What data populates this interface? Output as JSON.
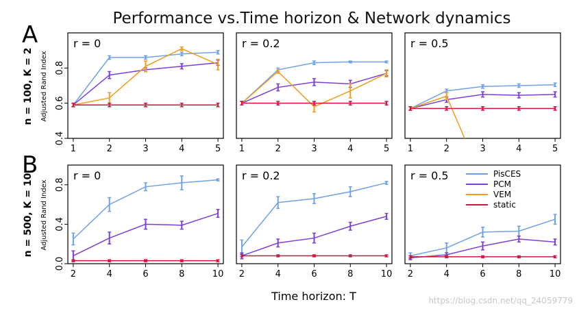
{
  "title": "Performance vs.Time horizon & Network dynamics",
  "x_title": "Time horizon: T",
  "watermark": "https://blog.csdn.net/qq_24059779",
  "rows": [
    {
      "letter": "A",
      "label": "n = 100, K = 2",
      "ylabel": "Adjusted Rand Index"
    },
    {
      "letter": "B",
      "label": "n = 500, K = 10",
      "ylabel": "Adjusted Rand Index"
    }
  ],
  "legend": [
    {
      "name": "PisCES",
      "color": "#6fa0e8"
    },
    {
      "name": "PCM",
      "color": "#7b3fdc"
    },
    {
      "name": "VEM",
      "color": "#f29b1d"
    },
    {
      "name": "static",
      "color": "#d0143c"
    }
  ],
  "chart_data": [
    {
      "type": "line",
      "row": 0,
      "col": 0,
      "panel_label": "r = 0",
      "x": [
        1,
        2,
        3,
        4,
        5
      ],
      "xlim": [
        0.85,
        5.15
      ],
      "ylim": [
        0.4,
        1.0
      ],
      "yticks": [
        0.4,
        0.6,
        0.8
      ],
      "series": [
        {
          "name": "PisCES",
          "values": [
            0.59,
            0.86,
            0.86,
            0.88,
            0.89
          ],
          "err": [
            0.01,
            0.01,
            0.01,
            0.01,
            0.01
          ]
        },
        {
          "name": "PCM",
          "values": [
            0.59,
            0.76,
            0.79,
            0.81,
            0.83
          ],
          "err": [
            0.01,
            0.02,
            0.01,
            0.015,
            0.015
          ]
        },
        {
          "name": "VEM",
          "values": [
            0.59,
            0.63,
            0.81,
            0.91,
            0.82
          ],
          "err": [
            0.01,
            0.03,
            0.03,
            0.01,
            0.03
          ]
        },
        {
          "name": "static",
          "values": [
            0.59,
            0.59,
            0.59,
            0.59,
            0.59
          ],
          "err": [
            0.01,
            0.01,
            0.01,
            0.01,
            0.01
          ]
        }
      ]
    },
    {
      "type": "line",
      "row": 0,
      "col": 1,
      "panel_label": "r = 0.2",
      "x": [
        1,
        2,
        3,
        4,
        5
      ],
      "xlim": [
        0.85,
        5.15
      ],
      "ylim": [
        0.4,
        1.0
      ],
      "yticks": [
        0.4,
        0.6,
        0.8
      ],
      "series": [
        {
          "name": "PisCES",
          "values": [
            0.6,
            0.79,
            0.83,
            0.835,
            0.835
          ],
          "err": [
            0.01,
            0.01,
            0.01,
            0.005,
            0.005
          ]
        },
        {
          "name": "PCM",
          "values": [
            0.6,
            0.69,
            0.72,
            0.71,
            0.77
          ],
          "err": [
            0.01,
            0.02,
            0.02,
            0.02,
            0.015
          ]
        },
        {
          "name": "VEM",
          "values": [
            0.6,
            0.78,
            0.58,
            0.67,
            0.77
          ],
          "err": [
            0.01,
            0.01,
            0.03,
            0.04,
            0.02
          ]
        },
        {
          "name": "static",
          "values": [
            0.6,
            0.6,
            0.6,
            0.6,
            0.6
          ],
          "err": [
            0.01,
            0.01,
            0.01,
            0.01,
            0.01
          ]
        }
      ]
    },
    {
      "type": "line",
      "row": 0,
      "col": 2,
      "panel_label": "r = 0.5",
      "x": [
        1,
        2,
        3,
        4,
        5
      ],
      "xlim": [
        0.85,
        5.15
      ],
      "ylim": [
        0.4,
        1.0
      ],
      "yticks": [
        0.4,
        0.6,
        0.8
      ],
      "series": [
        {
          "name": "PisCES",
          "values": [
            0.57,
            0.67,
            0.695,
            0.7,
            0.705
          ],
          "err": [
            0.01,
            0.01,
            0.01,
            0.01,
            0.01
          ]
        },
        {
          "name": "PCM",
          "values": [
            0.57,
            0.62,
            0.65,
            0.645,
            0.65
          ],
          "err": [
            0.01,
            0.015,
            0.015,
            0.015,
            0.015
          ]
        },
        {
          "name": "VEM",
          "x": [
            1,
            2,
            2.5
          ],
          "values": [
            0.57,
            0.64,
            0.4
          ],
          "err": [
            0.01,
            0.02,
            0
          ]
        },
        {
          "name": "static",
          "values": [
            0.57,
            0.57,
            0.57,
            0.57,
            0.57
          ],
          "err": [
            0.01,
            0.01,
            0.01,
            0.01,
            0.01
          ]
        }
      ]
    },
    {
      "type": "line",
      "row": 1,
      "col": 0,
      "panel_label": "r = 0",
      "x": [
        2,
        4,
        6,
        8,
        10
      ],
      "xlim": [
        1.7,
        10.3
      ],
      "ylim": [
        0,
        1.0
      ],
      "yticks": [
        0.0,
        0.4,
        0.8
      ],
      "series": [
        {
          "name": "PisCES",
          "values": [
            0.25,
            0.6,
            0.78,
            0.82,
            0.85
          ],
          "err": [
            0.06,
            0.07,
            0.04,
            0.07,
            0.01
          ]
        },
        {
          "name": "PCM",
          "values": [
            0.08,
            0.26,
            0.4,
            0.39,
            0.51
          ],
          "err": [
            0.05,
            0.06,
            0.05,
            0.04,
            0.04
          ]
        },
        {
          "name": "static",
          "values": [
            0.03,
            0.03,
            0.03,
            0.03,
            0.03
          ],
          "err": [
            0.01,
            0.01,
            0.01,
            0.01,
            0.01
          ]
        }
      ]
    },
    {
      "type": "line",
      "row": 1,
      "col": 1,
      "panel_label": "r = 0.2",
      "x": [
        2,
        4,
        6,
        8,
        10
      ],
      "xlim": [
        1.7,
        10.3
      ],
      "ylim": [
        0,
        1.0
      ],
      "yticks": [
        0.0,
        0.4,
        0.8
      ],
      "series": [
        {
          "name": "PisCES",
          "values": [
            0.17,
            0.62,
            0.66,
            0.73,
            0.82
          ],
          "err": [
            0.07,
            0.06,
            0.05,
            0.05,
            0.015
          ]
        },
        {
          "name": "PCM",
          "values": [
            0.08,
            0.21,
            0.26,
            0.38,
            0.48
          ],
          "err": [
            0.03,
            0.04,
            0.05,
            0.04,
            0.03
          ]
        },
        {
          "name": "static",
          "values": [
            0.08,
            0.08,
            0.08,
            0.08,
            0.08
          ],
          "err": [
            0.01,
            0.01,
            0.01,
            0.01,
            0.01
          ]
        }
      ]
    },
    {
      "type": "line",
      "row": 1,
      "col": 2,
      "panel_label": "r = 0.5",
      "x": [
        2,
        4,
        6,
        8,
        10
      ],
      "xlim": [
        1.7,
        10.3
      ],
      "ylim": [
        0,
        1.0
      ],
      "yticks": [
        0.0,
        0.4,
        0.8
      ],
      "series": [
        {
          "name": "PisCES",
          "values": [
            0.08,
            0.16,
            0.32,
            0.33,
            0.45
          ],
          "err": [
            0.03,
            0.05,
            0.05,
            0.05,
            0.05
          ]
        },
        {
          "name": "PCM",
          "values": [
            0.06,
            0.09,
            0.18,
            0.25,
            0.22
          ],
          "err": [
            0.02,
            0.02,
            0.04,
            0.03,
            0.03
          ]
        },
        {
          "name": "static",
          "values": [
            0.07,
            0.07,
            0.07,
            0.07,
            0.07
          ],
          "err": [
            0.01,
            0.01,
            0.01,
            0.01,
            0.01
          ]
        }
      ]
    }
  ]
}
